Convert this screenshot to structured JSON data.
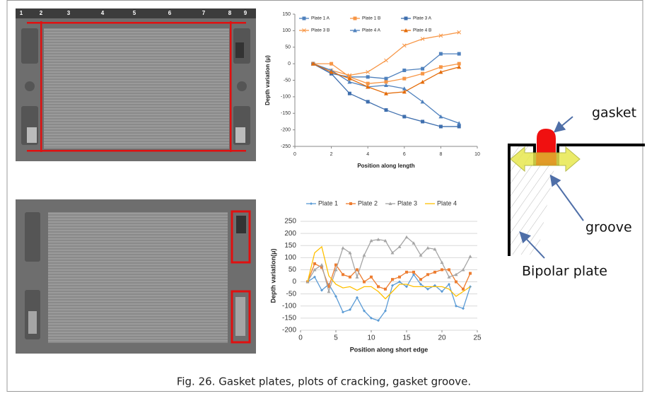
{
  "figure": {
    "caption": "Fig. 26. Gasket plates, plots of cracking, gasket groove.",
    "photo_numbers": [
      "1",
      "2",
      "3",
      "4",
      "5",
      "6",
      "7",
      "8",
      "9"
    ],
    "diagram": {
      "gasket": "gasket",
      "groove": "groove",
      "bipolar_plate": "Bipolar plate"
    }
  },
  "chart_data": [
    {
      "type": "line",
      "x_label": "Position along length",
      "y_label": "Depth variation (μ)",
      "x": [
        1,
        2,
        3,
        4,
        5,
        6,
        7,
        8,
        9
      ],
      "xlim": [
        0,
        10
      ],
      "xticks": [
        0,
        2,
        4,
        6,
        8,
        10
      ],
      "ylim": [
        -250,
        150
      ],
      "yticks": [
        -250,
        -200,
        -150,
        -100,
        -50,
        0,
        50,
        100,
        150
      ],
      "grid": false,
      "legend": "top-left",
      "series": [
        {
          "name": "Plate 1 A",
          "color": "#4f81bd",
          "marker": "square",
          "values": [
            0,
            -30,
            -40,
            -40,
            -45,
            -20,
            -15,
            30,
            30
          ]
        },
        {
          "name": "Plate 1 B",
          "color": "#f79646",
          "marker": "square",
          "values": [
            0,
            0,
            -40,
            -60,
            -55,
            -45,
            -30,
            -10,
            0
          ]
        },
        {
          "name": "Plate 3 A",
          "color": "#3f6fae",
          "marker": "square",
          "values": [
            0,
            -30,
            -90,
            -115,
            -140,
            -160,
            -175,
            -190,
            -190
          ]
        },
        {
          "name": "Plate 3 B",
          "color": "#f79646",
          "marker": "x",
          "values": [
            0,
            -20,
            -35,
            -25,
            10,
            55,
            75,
            85,
            95
          ]
        },
        {
          "name": "Plate 4 A",
          "color": "#4f81bd",
          "marker": "triangle",
          "values": [
            0,
            -20,
            -55,
            -70,
            -65,
            -75,
            -115,
            -160,
            -180
          ]
        },
        {
          "name": "Plate 4 B",
          "color": "#e46c0a",
          "marker": "triangle",
          "values": [
            0,
            -25,
            -45,
            -70,
            -90,
            -85,
            -55,
            -25,
            -10
          ]
        }
      ]
    },
    {
      "type": "line",
      "x_label": "Position along short edge",
      "y_label": "Depth variation(μ)",
      "x": [
        1,
        2,
        3,
        4,
        5,
        6,
        7,
        8,
        9,
        10,
        11,
        12,
        13,
        14,
        15,
        16,
        17,
        18,
        19,
        20,
        21,
        22,
        23,
        24
      ],
      "xlim": [
        0,
        25
      ],
      "xticks": [
        0,
        5,
        10,
        15,
        20,
        25
      ],
      "ylim": [
        -200,
        250
      ],
      "yticks": [
        -200,
        -150,
        -100,
        -50,
        0,
        50,
        100,
        150,
        200,
        250
      ],
      "grid": true,
      "legend": "top",
      "series": [
        {
          "name": "Plate 1",
          "color": "#5b9bd5",
          "marker": "diamond",
          "values": [
            0,
            20,
            -35,
            -10,
            -60,
            -125,
            -115,
            -65,
            -120,
            -150,
            -160,
            -120,
            -15,
            0,
            -20,
            30,
            -10,
            -30,
            -15,
            -40,
            -10,
            -100,
            -110,
            -20
          ]
        },
        {
          "name": "Plate 2",
          "color": "#ed7d31",
          "marker": "square",
          "values": [
            0,
            75,
            60,
            -20,
            70,
            30,
            20,
            50,
            0,
            20,
            -20,
            -30,
            10,
            20,
            40,
            40,
            10,
            30,
            40,
            50,
            50,
            0,
            -30,
            35
          ]
        },
        {
          "name": "Plate 3",
          "color": "#a5a5a5",
          "marker": "triangle",
          "values": [
            0,
            50,
            70,
            -40,
            50,
            140,
            120,
            20,
            110,
            170,
            175,
            170,
            120,
            145,
            185,
            160,
            110,
            140,
            135,
            80,
            20,
            30,
            50,
            105
          ]
        },
        {
          "name": "Plate 4",
          "color": "#ffc000",
          "marker": null,
          "values": [
            0,
            120,
            145,
            25,
            -10,
            -25,
            -20,
            -35,
            -20,
            -20,
            -40,
            -70,
            -40,
            -10,
            -10,
            -20,
            -20,
            -20,
            -20,
            -20,
            -30,
            -60,
            -40,
            -20
          ]
        }
      ]
    }
  ]
}
